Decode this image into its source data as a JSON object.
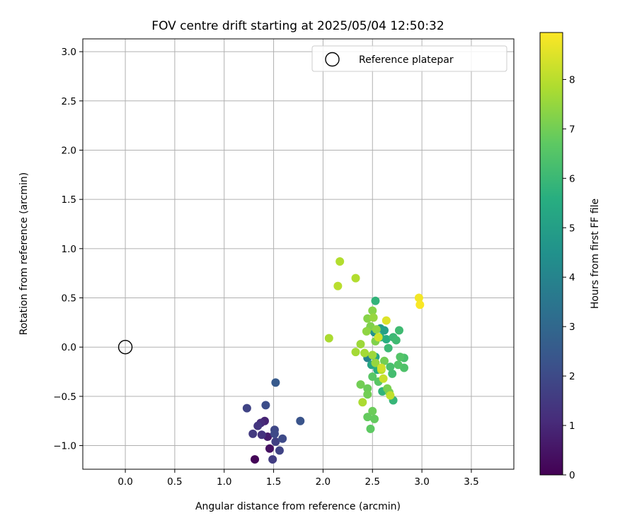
{
  "chart_data": {
    "type": "scatter",
    "title": "FOV centre drift starting at 2025/05/04 12:50:32",
    "xlabel": "Angular distance from reference (arcmin)",
    "ylabel": "Rotation from reference (arcmin)",
    "xlim": [
      -0.43,
      3.93
    ],
    "ylim": [
      -1.24,
      3.13
    ],
    "xticks": [
      0.0,
      0.5,
      1.0,
      1.5,
      2.0,
      2.5,
      3.0,
      3.5
    ],
    "xtick_labels": [
      "0.0",
      "0.5",
      "1.0",
      "1.5",
      "2.0",
      "2.5",
      "3.0",
      "3.5"
    ],
    "yticks": [
      -1.0,
      -0.5,
      0.0,
      0.5,
      1.0,
      1.5,
      2.0,
      2.5,
      3.0
    ],
    "ytick_labels": [
      "−1.0",
      "−0.5",
      "0.0",
      "0.5",
      "1.0",
      "1.5",
      "2.0",
      "2.5",
      "3.0"
    ],
    "grid": true,
    "legend": {
      "position": "top-right",
      "entries": [
        {
          "label": "Reference platepar",
          "marker": "open-circle"
        }
      ]
    },
    "reference_point": {
      "x": 0.0,
      "y": 0.0
    },
    "colorbar": {
      "label": "Hours from first FF file",
      "colormap": "viridis",
      "range": [
        0,
        8.95
      ],
      "ticks": [
        0,
        1,
        2,
        3,
        4,
        5,
        6,
        7,
        8
      ],
      "tick_labels": [
        "0",
        "1",
        "2",
        "3",
        "4",
        "5",
        "6",
        "7",
        "8"
      ]
    },
    "points": [
      {
        "x": 1.31,
        "y": -1.14,
        "c": 0.1
      },
      {
        "x": 1.46,
        "y": -1.03,
        "c": 0.4
      },
      {
        "x": 1.44,
        "y": -0.91,
        "c": 0.7
      },
      {
        "x": 1.41,
        "y": -0.75,
        "c": 0.9
      },
      {
        "x": 1.37,
        "y": -0.77,
        "c": 1.1
      },
      {
        "x": 1.38,
        "y": -0.89,
        "c": 1.3
      },
      {
        "x": 1.34,
        "y": -0.8,
        "c": 1.4
      },
      {
        "x": 1.29,
        "y": -0.88,
        "c": 1.5
      },
      {
        "x": 1.49,
        "y": -1.14,
        "c": 1.6
      },
      {
        "x": 1.52,
        "y": -0.96,
        "c": 1.7
      },
      {
        "x": 1.56,
        "y": -1.05,
        "c": 1.8
      },
      {
        "x": 1.23,
        "y": -0.62,
        "c": 1.8
      },
      {
        "x": 1.51,
        "y": -0.84,
        "c": 1.9
      },
      {
        "x": 1.59,
        "y": -0.93,
        "c": 2.0
      },
      {
        "x": 1.51,
        "y": -0.88,
        "c": 2.0
      },
      {
        "x": 1.42,
        "y": -0.59,
        "c": 2.1
      },
      {
        "x": 1.77,
        "y": -0.75,
        "c": 2.3
      },
      {
        "x": 1.52,
        "y": -0.36,
        "c": 2.5
      },
      {
        "x": 2.45,
        "y": -0.11,
        "c": 4.0
      },
      {
        "x": 2.47,
        "y": 0.18,
        "c": 4.3
      },
      {
        "x": 2.52,
        "y": 0.15,
        "c": 4.5
      },
      {
        "x": 2.58,
        "y": 0.19,
        "c": 4.8
      },
      {
        "x": 2.62,
        "y": 0.17,
        "c": 5.0
      },
      {
        "x": 2.49,
        "y": -0.18,
        "c": 5.2
      },
      {
        "x": 2.53,
        "y": -0.1,
        "c": 5.3
      },
      {
        "x": 2.55,
        "y": -0.23,
        "c": 5.5
      },
      {
        "x": 2.58,
        "y": 0.1,
        "c": 5.6
      },
      {
        "x": 2.64,
        "y": 0.08,
        "c": 5.6
      },
      {
        "x": 2.53,
        "y": 0.47,
        "c": 5.8
      },
      {
        "x": 2.6,
        "y": -0.45,
        "c": 5.8
      },
      {
        "x": 2.71,
        "y": -0.54,
        "c": 5.9
      },
      {
        "x": 2.66,
        "y": -0.01,
        "c": 6.0
      },
      {
        "x": 2.71,
        "y": 0.1,
        "c": 6.0
      },
      {
        "x": 2.74,
        "y": 0.07,
        "c": 6.1
      },
      {
        "x": 2.77,
        "y": 0.17,
        "c": 6.1
      },
      {
        "x": 2.7,
        "y": -0.27,
        "c": 6.2
      },
      {
        "x": 2.68,
        "y": -0.2,
        "c": 6.3
      },
      {
        "x": 2.82,
        "y": -0.11,
        "c": 6.3
      },
      {
        "x": 2.82,
        "y": -0.21,
        "c": 6.4
      },
      {
        "x": 2.78,
        "y": -0.1,
        "c": 6.5
      },
      {
        "x": 2.76,
        "y": -0.18,
        "c": 6.5
      },
      {
        "x": 2.56,
        "y": -0.35,
        "c": 6.6
      },
      {
        "x": 2.5,
        "y": -0.3,
        "c": 6.6
      },
      {
        "x": 2.48,
        "y": -0.83,
        "c": 6.7
      },
      {
        "x": 2.52,
        "y": -0.73,
        "c": 6.8
      },
      {
        "x": 2.45,
        "y": -0.71,
        "c": 6.8
      },
      {
        "x": 2.5,
        "y": -0.65,
        "c": 6.9
      },
      {
        "x": 2.45,
        "y": -0.42,
        "c": 6.9
      },
      {
        "x": 2.45,
        "y": -0.48,
        "c": 7.0
      },
      {
        "x": 2.38,
        "y": -0.38,
        "c": 7.0
      },
      {
        "x": 2.62,
        "y": -0.14,
        "c": 7.0
      },
      {
        "x": 2.65,
        "y": -0.42,
        "c": 7.1
      },
      {
        "x": 2.67,
        "y": -0.46,
        "c": 7.1
      },
      {
        "x": 2.53,
        "y": 0.06,
        "c": 7.2
      },
      {
        "x": 2.48,
        "y": 0.21,
        "c": 7.2
      },
      {
        "x": 2.45,
        "y": 0.29,
        "c": 7.3
      },
      {
        "x": 2.5,
        "y": 0.37,
        "c": 7.3
      },
      {
        "x": 2.54,
        "y": 0.18,
        "c": 7.4
      },
      {
        "x": 2.44,
        "y": 0.16,
        "c": 7.4
      },
      {
        "x": 2.51,
        "y": 0.3,
        "c": 7.5
      },
      {
        "x": 2.53,
        "y": -0.16,
        "c": 7.5
      },
      {
        "x": 2.5,
        "y": -0.08,
        "c": 7.6
      },
      {
        "x": 2.38,
        "y": 0.03,
        "c": 7.6
      },
      {
        "x": 2.42,
        "y": -0.06,
        "c": 7.7
      },
      {
        "x": 2.33,
        "y": -0.05,
        "c": 7.7
      },
      {
        "x": 2.4,
        "y": -0.56,
        "c": 7.8
      },
      {
        "x": 2.06,
        "y": 0.09,
        "c": 7.8
      },
      {
        "x": 2.17,
        "y": 0.87,
        "c": 7.9
      },
      {
        "x": 2.33,
        "y": 0.7,
        "c": 7.9
      },
      {
        "x": 2.15,
        "y": 0.62,
        "c": 8.0
      },
      {
        "x": 2.59,
        "y": -0.23,
        "c": 8.0
      },
      {
        "x": 2.68,
        "y": -0.49,
        "c": 8.1
      },
      {
        "x": 2.61,
        "y": -0.32,
        "c": 8.2
      },
      {
        "x": 2.56,
        "y": 0.1,
        "c": 8.3
      },
      {
        "x": 2.59,
        "y": -0.21,
        "c": 8.3
      },
      {
        "x": 2.64,
        "y": 0.27,
        "c": 8.5
      },
      {
        "x": 2.97,
        "y": 0.5,
        "c": 8.8
      },
      {
        "x": 2.98,
        "y": 0.43,
        "c": 8.9
      }
    ]
  }
}
